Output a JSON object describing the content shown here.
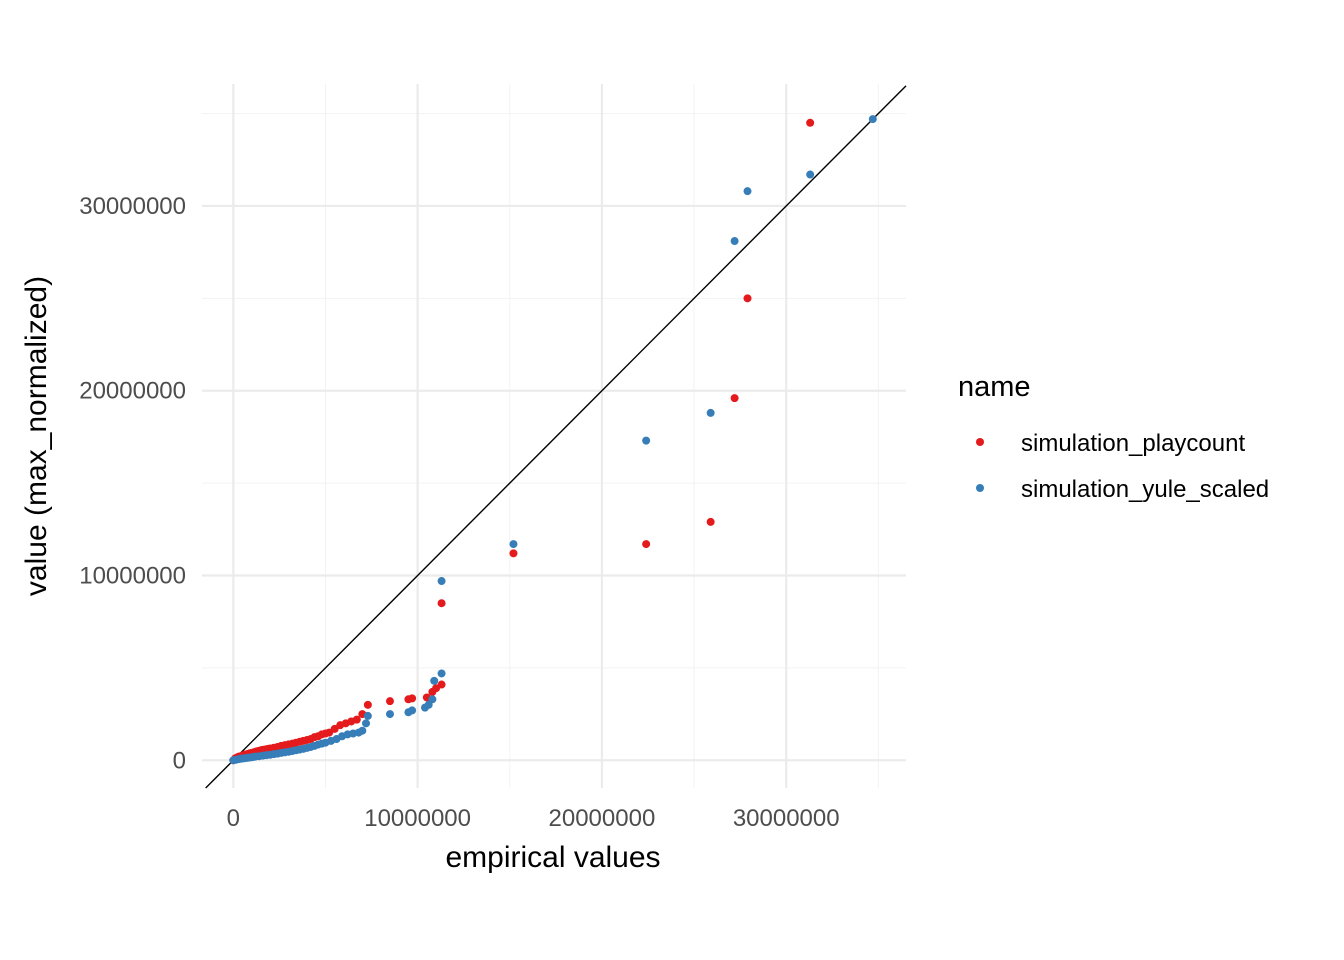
{
  "chart_data": {
    "type": "scatter",
    "title": "",
    "xlabel": "empirical values",
    "ylabel": "value (max_normalized)",
    "xlim": [
      -1700000,
      36500000
    ],
    "ylim": [
      -1500000,
      36600000
    ],
    "x_ticks": [
      0,
      10000000,
      20000000,
      30000000
    ],
    "x_tick_labels": [
      "0",
      "10000000",
      "20000000",
      "30000000"
    ],
    "y_ticks": [
      0,
      10000000,
      20000000,
      30000000
    ],
    "y_tick_labels": [
      "0",
      "10000000",
      "20000000",
      "30000000"
    ],
    "grid": true,
    "reference_line": "y = x",
    "legend": {
      "title": "name",
      "position": "right"
    },
    "series": [
      {
        "name": "simulation_playcount",
        "color": "#e41a1c",
        "points": [
          [
            0,
            0
          ],
          [
            100000,
            100000
          ],
          [
            200000,
            150000
          ],
          [
            300000,
            200000
          ],
          [
            400000,
            220000
          ],
          [
            500000,
            250000
          ],
          [
            600000,
            300000
          ],
          [
            700000,
            320000
          ],
          [
            800000,
            350000
          ],
          [
            900000,
            380000
          ],
          [
            1000000,
            400000
          ],
          [
            1100000,
            430000
          ],
          [
            1200000,
            460000
          ],
          [
            1300000,
            490000
          ],
          [
            1400000,
            510000
          ],
          [
            1500000,
            540000
          ],
          [
            1600000,
            560000
          ],
          [
            1700000,
            580000
          ],
          [
            1800000,
            600000
          ],
          [
            1900000,
            620000
          ],
          [
            2000000,
            640000
          ],
          [
            2200000,
            680000
          ],
          [
            2400000,
            720000
          ],
          [
            2600000,
            780000
          ],
          [
            2800000,
            820000
          ],
          [
            3000000,
            860000
          ],
          [
            3200000,
            900000
          ],
          [
            3400000,
            950000
          ],
          [
            3600000,
            1000000
          ],
          [
            3800000,
            1050000
          ],
          [
            4000000,
            1100000
          ],
          [
            4200000,
            1150000
          ],
          [
            4400000,
            1250000
          ],
          [
            4600000,
            1300000
          ],
          [
            4800000,
            1400000
          ],
          [
            5000000,
            1450000
          ],
          [
            5200000,
            1500000
          ],
          [
            5500000,
            1700000
          ],
          [
            5800000,
            1900000
          ],
          [
            6100000,
            2000000
          ],
          [
            6400000,
            2100000
          ],
          [
            6700000,
            2200000
          ],
          [
            7000000,
            2500000
          ],
          [
            7300000,
            3000000
          ],
          [
            8500000,
            3200000
          ],
          [
            9500000,
            3300000
          ],
          [
            9700000,
            3350000
          ],
          [
            10500000,
            3400000
          ],
          [
            10800000,
            3700000
          ],
          [
            11000000,
            3900000
          ],
          [
            11300000,
            4100000
          ],
          [
            11300000,
            8500000
          ],
          [
            15200000,
            11200000
          ],
          [
            22400000,
            11700000
          ],
          [
            25900000,
            12900000
          ],
          [
            27200000,
            19600000
          ],
          [
            27900000,
            25000000
          ],
          [
            31300000,
            34500000
          ]
        ]
      },
      {
        "name": "simulation_yule_scaled",
        "color": "#377eb8",
        "points": [
          [
            0,
            0
          ],
          [
            150000,
            30000
          ],
          [
            300000,
            60000
          ],
          [
            450000,
            90000
          ],
          [
            600000,
            110000
          ],
          [
            750000,
            130000
          ],
          [
            900000,
            150000
          ],
          [
            1050000,
            170000
          ],
          [
            1200000,
            200000
          ],
          [
            1400000,
            220000
          ],
          [
            1600000,
            250000
          ],
          [
            1800000,
            280000
          ],
          [
            2000000,
            300000
          ],
          [
            2200000,
            330000
          ],
          [
            2400000,
            360000
          ],
          [
            2600000,
            400000
          ],
          [
            2800000,
            430000
          ],
          [
            3000000,
            460000
          ],
          [
            3200000,
            500000
          ],
          [
            3400000,
            540000
          ],
          [
            3600000,
            580000
          ],
          [
            3800000,
            620000
          ],
          [
            4000000,
            670000
          ],
          [
            4200000,
            720000
          ],
          [
            4400000,
            780000
          ],
          [
            4600000,
            850000
          ],
          [
            4800000,
            900000
          ],
          [
            5000000,
            950000
          ],
          [
            5300000,
            1050000
          ],
          [
            5600000,
            1150000
          ],
          [
            5900000,
            1300000
          ],
          [
            6200000,
            1400000
          ],
          [
            6500000,
            1450000
          ],
          [
            6800000,
            1500000
          ],
          [
            7000000,
            1600000
          ],
          [
            7200000,
            2000000
          ],
          [
            7300000,
            2400000
          ],
          [
            8500000,
            2500000
          ],
          [
            9500000,
            2600000
          ],
          [
            9700000,
            2700000
          ],
          [
            10400000,
            2850000
          ],
          [
            10600000,
            3000000
          ],
          [
            10800000,
            3300000
          ],
          [
            10900000,
            4300000
          ],
          [
            11300000,
            4700000
          ],
          [
            11300000,
            9700000
          ],
          [
            15200000,
            11700000
          ],
          [
            22400000,
            17300000
          ],
          [
            25900000,
            18800000
          ],
          [
            27200000,
            28100000
          ],
          [
            27900000,
            30800000
          ],
          [
            31300000,
            31700000
          ],
          [
            34700000,
            34700000
          ]
        ]
      }
    ]
  }
}
